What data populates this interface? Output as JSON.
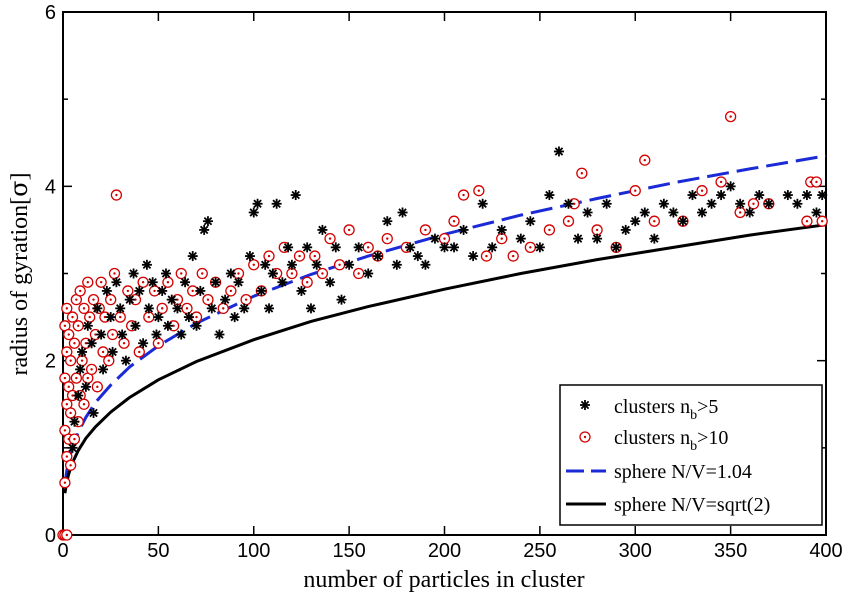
{
  "chart_data": {
    "type": "scatter",
    "xlabel": "number of particles in cluster",
    "ylabel_main": "radius of gyration[",
    "ylabel_sigma": "σ",
    "ylabel_close": "]",
    "xlim": [
      0,
      400
    ],
    "ylim": [
      0,
      6
    ],
    "x_ticks": [
      0,
      50,
      100,
      150,
      200,
      250,
      300,
      350,
      400
    ],
    "y_ticks": [
      0,
      2,
      4,
      6
    ],
    "x_tick_labels": [
      "0",
      "50",
      "100",
      "150",
      "200",
      "250",
      "300",
      "350",
      "400"
    ],
    "y_tick_labels": [
      "0",
      "2",
      "4",
      "6"
    ],
    "grid": false,
    "legend_position": "bottom-right",
    "legend": [
      {
        "main": "clusters n",
        "sub": "b",
        "tail": ">5",
        "marker": "star",
        "color": "#000000"
      },
      {
        "main": "clusters n",
        "sub": "b",
        "tail": ">10",
        "marker": "dotted-circle",
        "color": "#d40000"
      },
      {
        "main": "sphere N/V=1.04",
        "sub": "",
        "tail": "",
        "marker": "dash-line",
        "color": "#1a2ad6"
      },
      {
        "main": "sphere N/V=sqrt(2)",
        "sub": "",
        "tail": "",
        "marker": "solid-line",
        "color": "#000000"
      }
    ],
    "series": [
      {
        "name": "sphere N/V=1.04",
        "style": "dashed",
        "color": "#1a2ad6",
        "x": [
          1,
          2,
          3,
          5,
          8,
          12,
          17,
          25,
          35,
          50,
          70,
          100,
          130,
          160,
          200,
          240,
          280,
          320,
          360,
          400
        ],
        "y": [
          0.59,
          0.74,
          0.85,
          1.01,
          1.18,
          1.35,
          1.52,
          1.72,
          1.93,
          2.17,
          2.43,
          2.74,
          2.99,
          3.2,
          3.45,
          3.67,
          3.86,
          4.04,
          4.2,
          4.35
        ]
      },
      {
        "name": "sphere N/V=sqrt(2)",
        "style": "solid",
        "color": "#000000",
        "x": [
          1,
          2,
          3,
          5,
          8,
          12,
          17,
          25,
          35,
          50,
          70,
          100,
          130,
          160,
          200,
          240,
          280,
          320,
          360,
          400
        ],
        "y": [
          0.48,
          0.61,
          0.7,
          0.83,
          0.97,
          1.11,
          1.24,
          1.41,
          1.58,
          1.78,
          1.99,
          2.24,
          2.45,
          2.62,
          2.82,
          3.0,
          3.16,
          3.3,
          3.44,
          3.56
        ]
      },
      {
        "name": "clusters n_b>5",
        "marker": "star",
        "color": "#000000",
        "points": [
          [
            5,
            1.0
          ],
          [
            6,
            1.3
          ],
          [
            8,
            1.6
          ],
          [
            9,
            1.9
          ],
          [
            10,
            2.1
          ],
          [
            12,
            1.7
          ],
          [
            13,
            2.4
          ],
          [
            15,
            2.2
          ],
          [
            16,
            1.4
          ],
          [
            18,
            2.6
          ],
          [
            20,
            2.3
          ],
          [
            21,
            1.9
          ],
          [
            23,
            2.8
          ],
          [
            25,
            2.5
          ],
          [
            26,
            2.1
          ],
          [
            28,
            2.9
          ],
          [
            30,
            2.6
          ],
          [
            31,
            2.3
          ],
          [
            33,
            2.0
          ],
          [
            35,
            2.7
          ],
          [
            37,
            3.0
          ],
          [
            38,
            2.4
          ],
          [
            40,
            2.8
          ],
          [
            42,
            2.2
          ],
          [
            44,
            3.1
          ],
          [
            45,
            2.6
          ],
          [
            47,
            2.9
          ],
          [
            49,
            2.3
          ],
          [
            50,
            2.5
          ],
          [
            52,
            2.8
          ],
          [
            54,
            3.0
          ],
          [
            55,
            2.4
          ],
          [
            57,
            2.7
          ],
          [
            60,
            2.6
          ],
          [
            62,
            2.3
          ],
          [
            64,
            2.9
          ],
          [
            66,
            2.5
          ],
          [
            68,
            3.2
          ],
          [
            70,
            2.4
          ],
          [
            72,
            2.8
          ],
          [
            74,
            3.5
          ],
          [
            76,
            3.6
          ],
          [
            78,
            2.6
          ],
          [
            80,
            2.9
          ],
          [
            82,
            2.3
          ],
          [
            85,
            2.7
          ],
          [
            88,
            3.0
          ],
          [
            90,
            2.5
          ],
          [
            92,
            2.9
          ],
          [
            95,
            2.6
          ],
          [
            98,
            3.2
          ],
          [
            100,
            3.7
          ],
          [
            102,
            3.8
          ],
          [
            104,
            2.8
          ],
          [
            106,
            3.1
          ],
          [
            108,
            2.6
          ],
          [
            110,
            3.0
          ],
          [
            112,
            3.8
          ],
          [
            115,
            2.9
          ],
          [
            118,
            3.3
          ],
          [
            120,
            3.1
          ],
          [
            122,
            3.9
          ],
          [
            125,
            2.8
          ],
          [
            128,
            3.3
          ],
          [
            130,
            2.6
          ],
          [
            133,
            3.1
          ],
          [
            136,
            3.5
          ],
          [
            140,
            2.9
          ],
          [
            143,
            3.3
          ],
          [
            146,
            2.7
          ],
          [
            150,
            3.1
          ],
          [
            155,
            3.3
          ],
          [
            160,
            3.0
          ],
          [
            165,
            3.2
          ],
          [
            170,
            3.6
          ],
          [
            175,
            3.1
          ],
          [
            178,
            3.7
          ],
          [
            182,
            3.3
          ],
          [
            186,
            3.2
          ],
          [
            190,
            3.1
          ],
          [
            195,
            3.4
          ],
          [
            200,
            3.3
          ],
          [
            205,
            3.3
          ],
          [
            210,
            3.5
          ],
          [
            215,
            3.2
          ],
          [
            220,
            3.8
          ],
          [
            225,
            3.3
          ],
          [
            230,
            3.5
          ],
          [
            240,
            3.4
          ],
          [
            245,
            3.6
          ],
          [
            250,
            3.3
          ],
          [
            255,
            3.9
          ],
          [
            260,
            4.4
          ],
          [
            265,
            3.8
          ],
          [
            270,
            3.4
          ],
          [
            275,
            3.7
          ],
          [
            280,
            3.4
          ],
          [
            285,
            3.8
          ],
          [
            290,
            3.3
          ],
          [
            295,
            3.5
          ],
          [
            300,
            3.6
          ],
          [
            305,
            3.7
          ],
          [
            310,
            3.4
          ],
          [
            315,
            3.8
          ],
          [
            320,
            3.7
          ],
          [
            325,
            3.6
          ],
          [
            330,
            3.9
          ],
          [
            335,
            3.7
          ],
          [
            340,
            3.8
          ],
          [
            345,
            3.9
          ],
          [
            350,
            4.0
          ],
          [
            355,
            3.8
          ],
          [
            360,
            3.7
          ],
          [
            365,
            3.9
          ],
          [
            370,
            3.8
          ],
          [
            380,
            3.9
          ],
          [
            385,
            3.8
          ],
          [
            390,
            3.9
          ],
          [
            395,
            3.7
          ],
          [
            398,
            3.9
          ]
        ]
      },
      {
        "name": "clusters n_b>10",
        "marker": "dotted-circle",
        "color": "#d40000",
        "points": [
          [
            0,
            0.0
          ],
          [
            1,
            0.0
          ],
          [
            2,
            0.0
          ],
          [
            1,
            0.6
          ],
          [
            2,
            0.9
          ],
          [
            1,
            1.2
          ],
          [
            2,
            1.5
          ],
          [
            1,
            1.8
          ],
          [
            2,
            2.1
          ],
          [
            1,
            2.4
          ],
          [
            2,
            2.6
          ],
          [
            3,
            1.1
          ],
          [
            3,
            1.7
          ],
          [
            3,
            2.3
          ],
          [
            4,
            0.8
          ],
          [
            4,
            1.4
          ],
          [
            4,
            2.0
          ],
          [
            5,
            1.6
          ],
          [
            5,
            2.5
          ],
          [
            6,
            1.1
          ],
          [
            6,
            2.2
          ],
          [
            7,
            1.8
          ],
          [
            7,
            2.7
          ],
          [
            8,
            1.3
          ],
          [
            8,
            2.4
          ],
          [
            9,
            1.6
          ],
          [
            9,
            2.8
          ],
          [
            10,
            2.0
          ],
          [
            11,
            1.5
          ],
          [
            11,
            2.6
          ],
          [
            12,
            2.2
          ],
          [
            13,
            1.8
          ],
          [
            13,
            2.9
          ],
          [
            14,
            2.5
          ],
          [
            15,
            1.9
          ],
          [
            16,
            2.7
          ],
          [
            17,
            2.3
          ],
          [
            18,
            1.7
          ],
          [
            19,
            2.6
          ],
          [
            20,
            2.9
          ],
          [
            21,
            2.1
          ],
          [
            22,
            2.5
          ],
          [
            24,
            2.0
          ],
          [
            25,
            2.7
          ],
          [
            26,
            2.3
          ],
          [
            27,
            3.0
          ],
          [
            28,
            3.9
          ],
          [
            30,
            2.5
          ],
          [
            32,
            2.2
          ],
          [
            34,
            2.8
          ],
          [
            36,
            2.4
          ],
          [
            38,
            2.7
          ],
          [
            40,
            2.1
          ],
          [
            42,
            2.9
          ],
          [
            45,
            2.5
          ],
          [
            48,
            2.8
          ],
          [
            50,
            2.2
          ],
          [
            52,
            2.6
          ],
          [
            55,
            2.9
          ],
          [
            58,
            2.4
          ],
          [
            60,
            2.7
          ],
          [
            62,
            3.0
          ],
          [
            65,
            2.6
          ],
          [
            68,
            2.8
          ],
          [
            70,
            2.5
          ],
          [
            73,
            3.0
          ],
          [
            76,
            2.7
          ],
          [
            80,
            2.9
          ],
          [
            84,
            2.6
          ],
          [
            88,
            2.8
          ],
          [
            92,
            3.0
          ],
          [
            96,
            2.7
          ],
          [
            100,
            3.1
          ],
          [
            104,
            2.8
          ],
          [
            108,
            3.2
          ],
          [
            112,
            3.0
          ],
          [
            116,
            3.3
          ],
          [
            120,
            3.0
          ],
          [
            124,
            3.2
          ],
          [
            128,
            2.9
          ],
          [
            132,
            3.2
          ],
          [
            136,
            3.0
          ],
          [
            140,
            3.4
          ],
          [
            145,
            3.1
          ],
          [
            150,
            3.5
          ],
          [
            155,
            3.0
          ],
          [
            160,
            3.3
          ],
          [
            165,
            3.2
          ],
          [
            170,
            3.4
          ],
          [
            180,
            3.3
          ],
          [
            190,
            3.5
          ],
          [
            200,
            3.4
          ],
          [
            205,
            3.6
          ],
          [
            210,
            3.9
          ],
          [
            218,
            3.95
          ],
          [
            222,
            3.2
          ],
          [
            230,
            3.4
          ],
          [
            236,
            3.2
          ],
          [
            245,
            3.3
          ],
          [
            255,
            3.5
          ],
          [
            265,
            3.6
          ],
          [
            268,
            3.8
          ],
          [
            272,
            4.15
          ],
          [
            280,
            3.5
          ],
          [
            290,
            3.3
          ],
          [
            300,
            3.95
          ],
          [
            305,
            4.3
          ],
          [
            310,
            3.6
          ],
          [
            325,
            3.6
          ],
          [
            335,
            3.95
          ],
          [
            345,
            4.05
          ],
          [
            350,
            4.8
          ],
          [
            355,
            3.7
          ],
          [
            362,
            3.8
          ],
          [
            370,
            3.8
          ],
          [
            390,
            3.6
          ],
          [
            392,
            4.05
          ],
          [
            395,
            4.05
          ],
          [
            398,
            3.6
          ]
        ]
      }
    ]
  }
}
